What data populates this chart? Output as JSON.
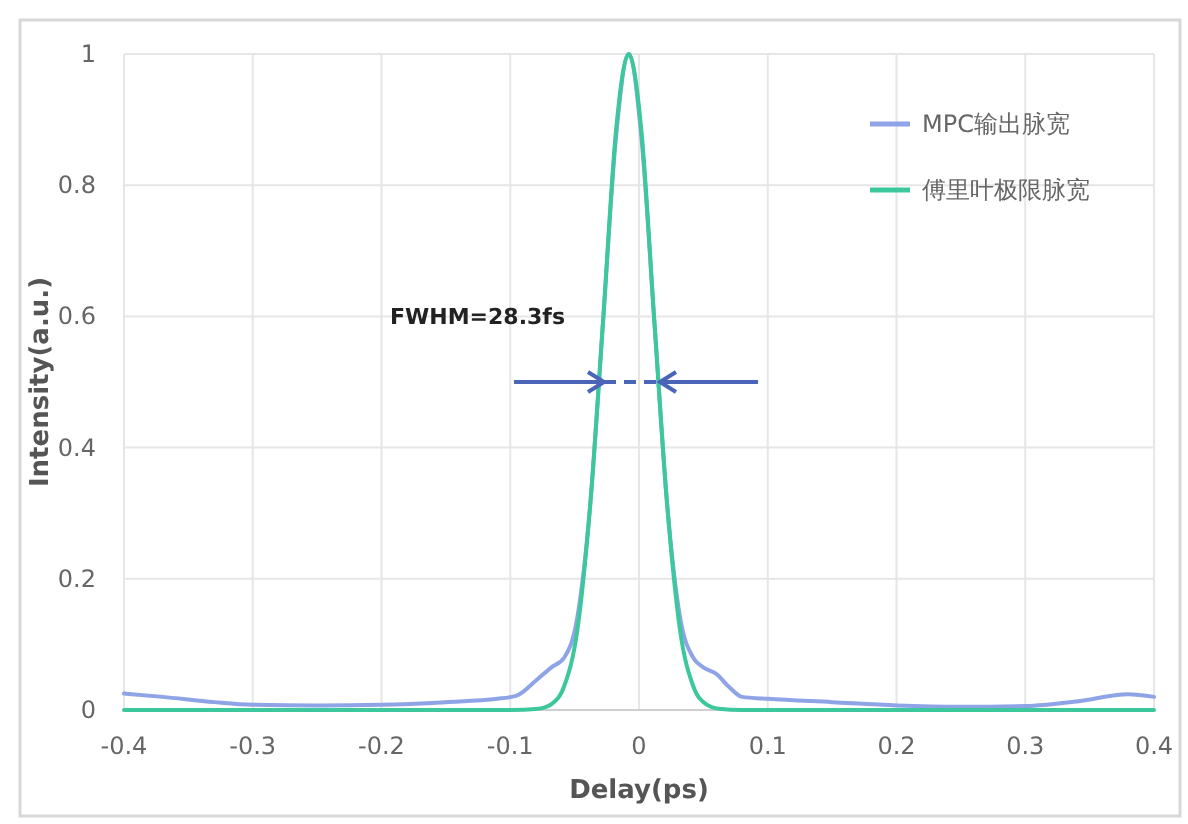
{
  "chart_data": {
    "type": "line",
    "xlabel": "Delay(ps)",
    "ylabel": "Intensity(a.u.)",
    "xlim": [
      -0.4,
      0.4
    ],
    "xticks": [
      -0.4,
      -0.3,
      -0.2,
      -0.1,
      0,
      0.1,
      0.2,
      0.3,
      0.4
    ],
    "ylim": [
      0,
      1
    ],
    "yticks": [
      0,
      0.2,
      0.4,
      0.6,
      0.8,
      1
    ],
    "grid": true,
    "legend": "top right",
    "marker": "none",
    "line_style": "solid",
    "annotations": [
      "FWHM=28.3fs"
    ],
    "series": [
      {
        "name": "MPC输出脉宽",
        "color": "#8ea4e6",
        "x": [
          -0.4,
          -0.37,
          -0.33,
          -0.3,
          -0.25,
          -0.2,
          -0.15,
          -0.11,
          -0.095,
          -0.08,
          -0.068,
          -0.058,
          -0.048,
          -0.038,
          -0.028,
          -0.018,
          -0.008,
          0.002,
          0.012,
          0.022,
          0.032,
          0.042,
          0.05,
          0.06,
          0.07,
          0.08,
          0.1,
          0.15,
          0.2,
          0.25,
          0.3,
          0.34,
          0.38,
          0.4
        ],
        "values": [
          0.025,
          0.02,
          0.012,
          0.008,
          0.007,
          0.008,
          0.012,
          0.017,
          0.022,
          0.045,
          0.065,
          0.08,
          0.14,
          0.31,
          0.59,
          0.87,
          1,
          0.87,
          0.59,
          0.31,
          0.14,
          0.08,
          0.065,
          0.055,
          0.035,
          0.02,
          0.017,
          0.012,
          0.007,
          0.005,
          0.006,
          0.013,
          0.024,
          0.02
        ]
      },
      {
        "name": "傅里叶极限脉宽",
        "color": "#3cc89c",
        "x": [
          -0.4,
          -0.1,
          -0.078,
          -0.068,
          -0.058,
          -0.048,
          -0.038,
          -0.028,
          -0.018,
          -0.008,
          0.002,
          0.012,
          0.022,
          0.032,
          0.042,
          0.052,
          0.062,
          0.08,
          0.4
        ],
        "values": [
          0,
          0,
          0.002,
          0.009,
          0.037,
          0.12,
          0.31,
          0.59,
          0.88,
          1,
          0.88,
          0.59,
          0.31,
          0.12,
          0.037,
          0.009,
          0.002,
          0,
          0
        ]
      }
    ]
  }
}
